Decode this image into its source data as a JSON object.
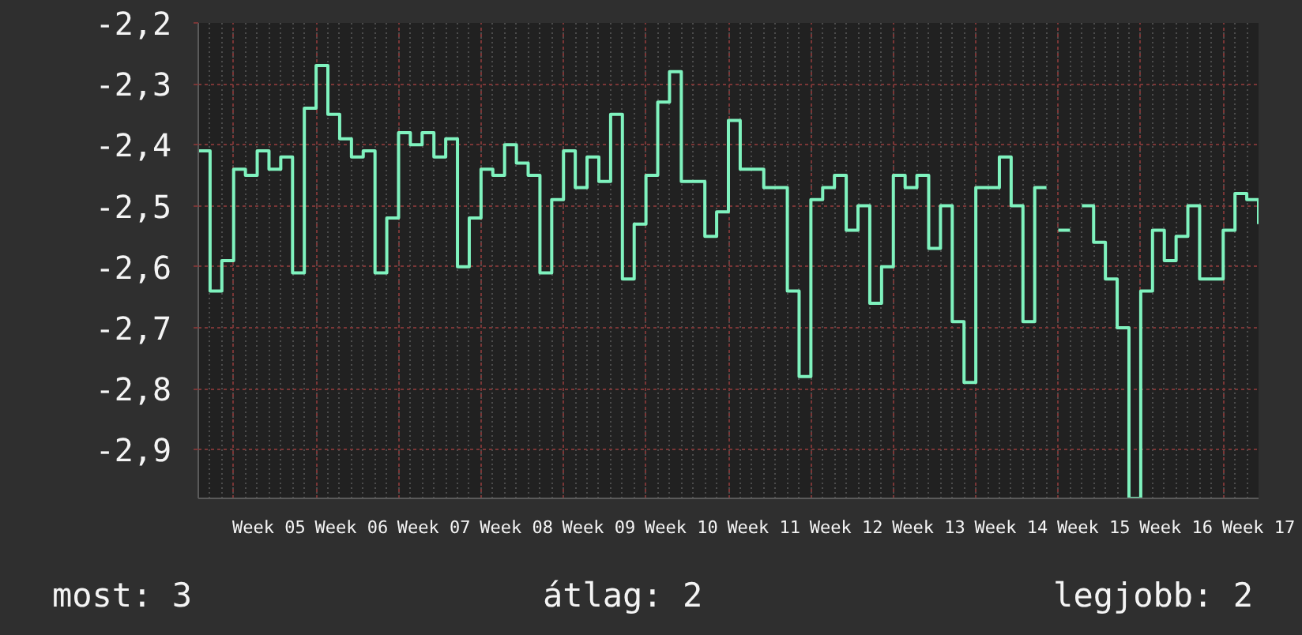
{
  "chart_data": {
    "type": "step",
    "annotations": [
      "most: 3",
      "átlag: 2",
      "legjobb: 2"
    ],
    "categories": [
      null,
      null,
      null,
      null,
      null,
      null,
      "Week 05",
      null,
      null,
      null,
      null,
      null,
      null,
      "Week 06",
      null,
      null,
      null,
      null,
      null,
      null,
      "Week 07",
      null,
      null,
      null,
      null,
      null,
      null,
      "Week 08",
      null,
      null,
      null,
      null,
      null,
      null,
      "Week 09",
      null,
      null,
      null,
      null,
      null,
      null,
      "Week 10",
      null,
      null,
      null,
      null,
      null,
      null,
      "Week 11",
      null,
      null,
      null,
      null,
      null,
      null,
      "Week 12",
      null,
      null,
      null,
      null,
      null,
      null,
      "Week 13",
      null,
      null,
      null,
      null,
      null,
      null,
      "Week 14",
      null,
      null,
      null,
      null,
      null,
      null,
      "Week 15",
      null,
      null,
      null,
      null,
      null,
      null,
      "Week 16",
      null,
      null,
      null,
      null,
      null,
      null,
      "Week 17"
    ],
    "series": [
      {
        "color": "#7ff2be",
        "values": [
          -2.41,
          -2.64,
          -2.59,
          -2.44,
          -2.45,
          -2.41,
          -2.44,
          -2.42,
          -2.61,
          -2.34,
          -2.27,
          -2.35,
          -2.39,
          -2.42,
          -2.41,
          -2.61,
          -2.52,
          -2.38,
          -2.4,
          -2.38,
          -2.42,
          -2.39,
          -2.6,
          -2.52,
          -2.44,
          -2.45,
          -2.4,
          -2.43,
          -2.45,
          -2.61,
          -2.49,
          -2.41,
          -2.47,
          -2.42,
          -2.46,
          -2.35,
          -2.62,
          -2.53,
          -2.45,
          -2.33,
          -2.28,
          -2.46,
          -2.46,
          -2.55,
          -2.51,
          -2.36,
          -2.44,
          -2.44,
          -2.47,
          -2.47,
          -2.64,
          -2.78,
          -2.49,
          -2.47,
          -2.45,
          -2.54,
          -2.5,
          -2.66,
          -2.6,
          -2.45,
          -2.47,
          -2.45,
          -2.57,
          -2.5,
          -2.69,
          -2.79,
          -2.47,
          -2.47,
          -2.42,
          -2.5,
          -2.69,
          -2.47,
          null,
          -2.54,
          null,
          -2.5,
          -2.56,
          -2.62,
          -2.7,
          -2.98,
          -2.64,
          -2.54,
          -2.59,
          -2.55,
          -2.5,
          -2.62,
          -2.62,
          -2.54,
          -2.48,
          -2.49,
          -2.53
        ]
      }
    ],
    "ylim": [
      -2.98,
      -2.2
    ],
    "yticks": [
      {
        "value": -2.2,
        "label": "-2,2"
      },
      {
        "value": -2.3,
        "label": "-2,3"
      },
      {
        "value": -2.4,
        "label": "-2,4"
      },
      {
        "value": -2.5,
        "label": "-2,5"
      },
      {
        "value": -2.6,
        "label": "-2,6"
      },
      {
        "value": -2.7,
        "label": "-2,7"
      },
      {
        "value": -2.8,
        "label": "-2,8"
      },
      {
        "value": -2.9,
        "label": "-2,9"
      }
    ],
    "grid": true
  }
}
